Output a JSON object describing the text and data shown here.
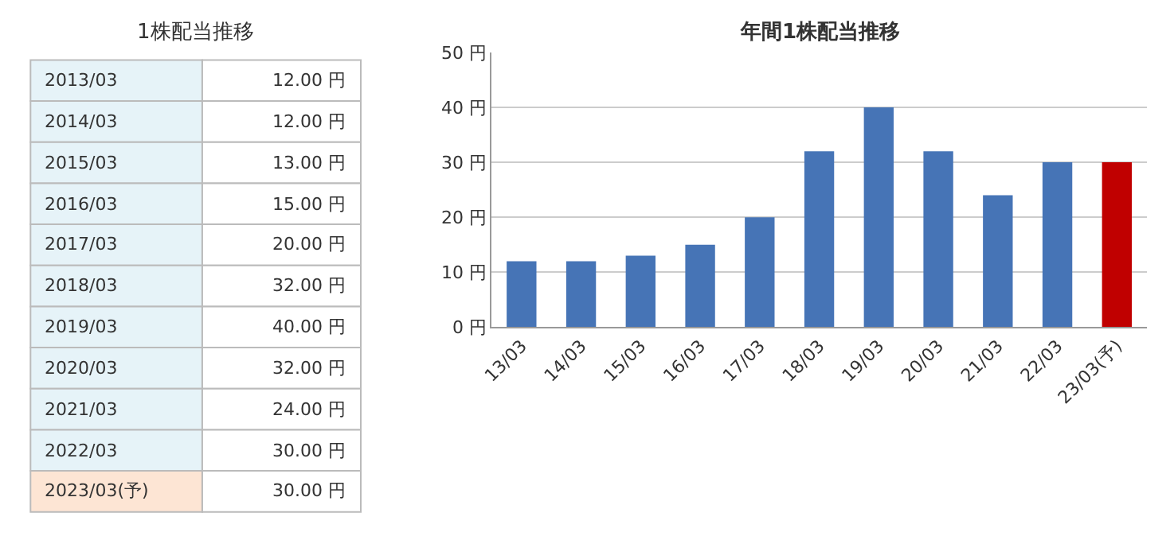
{
  "chart_data": [
    {
      "type": "other",
      "title": "1株配当推移",
      "categories": [
        "2013/03",
        "2014/03",
        "2015/03",
        "2016/03",
        "2017/03",
        "2018/03",
        "2019/03",
        "2020/03",
        "2021/03",
        "2022/03",
        "2023/03(予)"
      ],
      "value_labels": [
        "12.00 円",
        "12.00 円",
        "13.00 円",
        "15.00 円",
        "20.00 円",
        "32.00 円",
        "40.00 円",
        "32.00 円",
        "24.00 円",
        "30.00 円",
        "30.00 円"
      ]
    },
    {
      "type": "bar",
      "title": "年間1株配当推移",
      "categories": [
        "13/03",
        "14/03",
        "15/03",
        "16/03",
        "17/03",
        "18/03",
        "19/03",
        "20/03",
        "21/03",
        "22/03",
        "23/03(予)"
      ],
      "values": [
        12,
        12,
        13,
        15,
        20,
        32,
        40,
        32,
        24,
        30,
        30
      ],
      "colors": [
        "#4674b6",
        "#4674b6",
        "#4674b6",
        "#4674b6",
        "#4674b6",
        "#4674b6",
        "#4674b6",
        "#4674b6",
        "#4674b6",
        "#4674b6",
        "#c00000"
      ],
      "ylim": [
        0,
        50
      ],
      "yticks": [
        {
          "value": 0,
          "label": "0 円"
        },
        {
          "value": 10,
          "label": "10 円"
        },
        {
          "value": 20,
          "label": "20 円"
        },
        {
          "value": 30,
          "label": "30 円"
        },
        {
          "value": 40,
          "label": "40 円"
        },
        {
          "value": 50,
          "label": "50 円"
        }
      ],
      "grid": "y"
    }
  ]
}
